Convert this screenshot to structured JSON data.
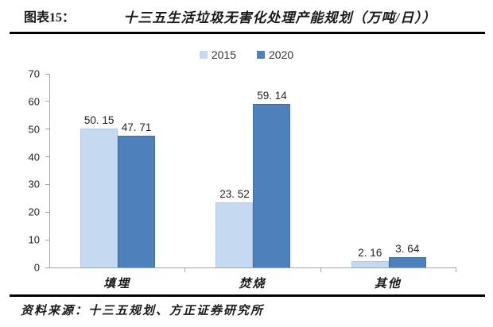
{
  "header": {
    "figure_label": "图表15：",
    "title": "十三五生活垃圾无害化处理产能规划（万吨/日））"
  },
  "chart_data": {
    "type": "bar",
    "title": "十三五生活垃圾无害化处理产能规划（万吨/日））",
    "categories": [
      "填埋",
      "焚烧",
      "其他"
    ],
    "series": [
      {
        "name": "2015",
        "color": "#C5D9F1",
        "border_color": "#AFC9E8",
        "values": [
          50.15,
          23.52,
          2.16
        ],
        "value_labels": [
          "50. 15",
          "23. 52",
          "2. 16"
        ]
      },
      {
        "name": "2020",
        "color": "#4E80BC",
        "border_color": "#44709F",
        "values": [
          47.71,
          59.14,
          3.64
        ],
        "value_labels": [
          "47. 71",
          "59. 14",
          "3. 64"
        ]
      }
    ],
    "xlabel": "",
    "ylabel": "",
    "ylim": [
      0,
      70
    ],
    "yticks": [
      0,
      10,
      20,
      30,
      40,
      50,
      60,
      70
    ],
    "grid": false,
    "legend_position": "top-center"
  },
  "footer": {
    "source": "资料来源：十三五规划、方正证券研究所"
  },
  "colors": {
    "series_2015": "#C5D9F1",
    "series_2020": "#4E80BC",
    "axis": "#A6A6A6",
    "rule": "#000000",
    "text": "#1A1A1A"
  }
}
